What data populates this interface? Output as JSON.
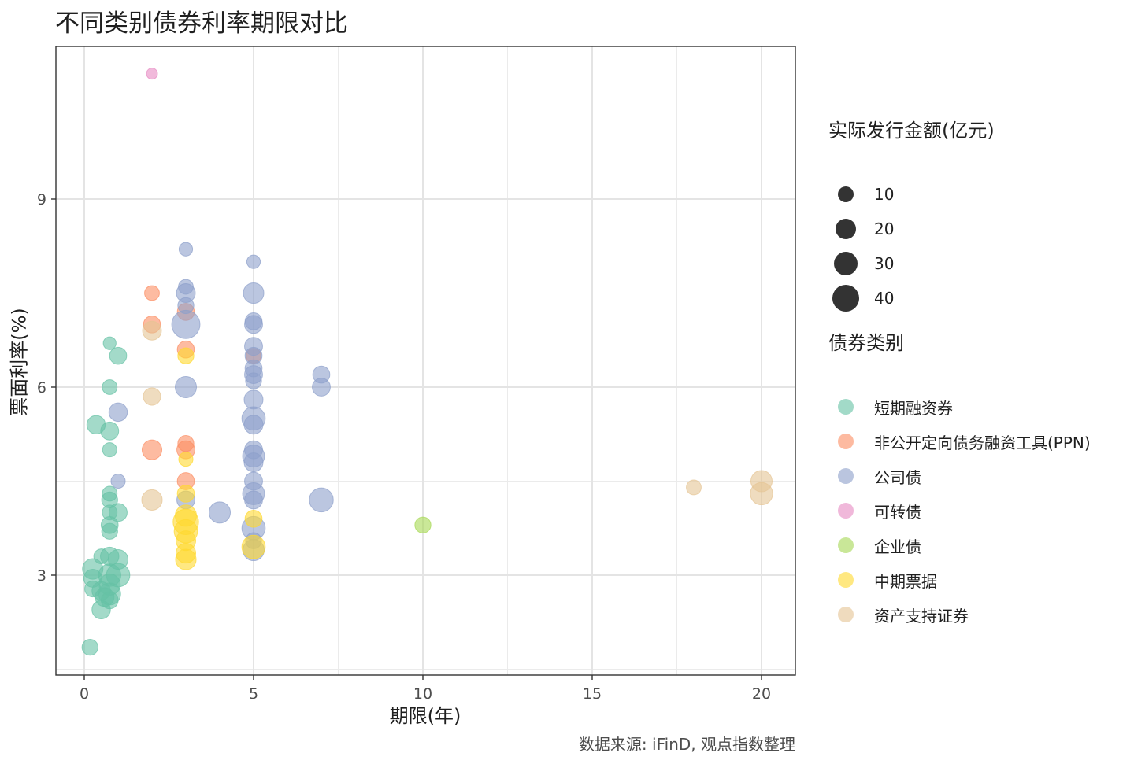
{
  "title": "不同类别债券利率期限对比",
  "caption": "数据来源: iFinD, 观点指数整理",
  "colors": {
    "短期融资券": "#66c2a5",
    "非公开定向债务融资工具(PPN)": "#fc8d62",
    "公司债": "#8da0cb",
    "可转债": "#e78ac3",
    "企业债": "#a6d854",
    "中期票据": "#ffd92f",
    "资产支持证券": "#e5c494"
  },
  "legend_size": {
    "title": "实际发行金额(亿元)",
    "items": [
      {
        "label": "10",
        "value": 10
      },
      {
        "label": "20",
        "value": 20
      },
      {
        "label": "30",
        "value": 30
      },
      {
        "label": "40",
        "value": 40
      }
    ]
  },
  "legend_color": {
    "title": "债券类别",
    "items": [
      {
        "label": "短期融资券"
      },
      {
        "label": "非公开定向债务融资工具(PPN)"
      },
      {
        "label": "公司债"
      },
      {
        "label": "可转债"
      },
      {
        "label": "企业债"
      },
      {
        "label": "中期票据"
      },
      {
        "label": "资产支持证券"
      }
    ]
  },
  "chart_data": {
    "type": "scatter",
    "title": "不同类别债券利率期限对比",
    "xlabel": "期限(年)",
    "ylabel": "票面利率(%)",
    "xlim": [
      -0.8,
      21
    ],
    "ylim": [
      1.41,
      11.43
    ],
    "xticks": [
      0,
      5,
      10,
      15,
      20
    ],
    "yticks": [
      3,
      6,
      9
    ],
    "grid": true,
    "legend_position": "right",
    "size_legend": {
      "title": "实际发行金额(亿元)",
      "breaks": [
        10,
        20,
        30,
        40
      ]
    },
    "color_legend": {
      "title": "债券类别",
      "categories": [
        "短期融资券",
        "非公开定向债务融资工具(PPN)",
        "公司债",
        "可转债",
        "企业债",
        "中期票据",
        "资产支持证券"
      ]
    },
    "series": [
      {
        "name": "短期融资券",
        "points": [
          {
            "x": 0.75,
            "y": 6.7,
            "size": 5
          },
          {
            "x": 1.0,
            "y": 6.5,
            "size": 12
          },
          {
            "x": 0.75,
            "y": 6.0,
            "size": 8
          },
          {
            "x": 0.35,
            "y": 5.4,
            "size": 15
          },
          {
            "x": 0.75,
            "y": 5.3,
            "size": 14
          },
          {
            "x": 0.75,
            "y": 5.0,
            "size": 7
          },
          {
            "x": 0.75,
            "y": 4.3,
            "size": 8
          },
          {
            "x": 0.75,
            "y": 4.2,
            "size": 10
          },
          {
            "x": 1.0,
            "y": 4.0,
            "size": 14
          },
          {
            "x": 0.75,
            "y": 4.0,
            "size": 8
          },
          {
            "x": 0.75,
            "y": 3.8,
            "size": 12
          },
          {
            "x": 0.75,
            "y": 3.7,
            "size": 10
          },
          {
            "x": 0.5,
            "y": 3.3,
            "size": 8
          },
          {
            "x": 0.75,
            "y": 3.3,
            "size": 15
          },
          {
            "x": 1.0,
            "y": 3.25,
            "size": 18
          },
          {
            "x": 0.25,
            "y": 3.1,
            "size": 20
          },
          {
            "x": 0.25,
            "y": 2.95,
            "size": 14
          },
          {
            "x": 0.75,
            "y": 3.0,
            "size": 25
          },
          {
            "x": 1.0,
            "y": 3.0,
            "size": 28
          },
          {
            "x": 0.75,
            "y": 2.85,
            "size": 22
          },
          {
            "x": 0.5,
            "y": 2.75,
            "size": 15
          },
          {
            "x": 0.25,
            "y": 2.78,
            "size": 10
          },
          {
            "x": 0.75,
            "y": 2.7,
            "size": 24
          },
          {
            "x": 0.6,
            "y": 2.65,
            "size": 16
          },
          {
            "x": 0.75,
            "y": 2.6,
            "size": 12
          },
          {
            "x": 0.5,
            "y": 2.45,
            "size": 15
          },
          {
            "x": 0.17,
            "y": 1.85,
            "size": 10
          }
        ]
      },
      {
        "name": "非公开定向债务融资工具(PPN)",
        "points": [
          {
            "x": 2.0,
            "y": 7.5,
            "size": 8
          },
          {
            "x": 2.0,
            "y": 7.0,
            "size": 12
          },
          {
            "x": 3.0,
            "y": 7.2,
            "size": 12
          },
          {
            "x": 3.0,
            "y": 6.6,
            "size": 12
          },
          {
            "x": 3.0,
            "y": 5.1,
            "size": 10
          },
          {
            "x": 3.0,
            "y": 5.0,
            "size": 14
          },
          {
            "x": 2.0,
            "y": 5.0,
            "size": 18
          },
          {
            "x": 3.0,
            "y": 4.5,
            "size": 12
          },
          {
            "x": 5.0,
            "y": 6.5,
            "size": 8
          }
        ]
      },
      {
        "name": "公司债",
        "points": [
          {
            "x": 3.0,
            "y": 8.2,
            "size": 6
          },
          {
            "x": 3.0,
            "y": 7.6,
            "size": 8
          },
          {
            "x": 3.0,
            "y": 7.5,
            "size": 16
          },
          {
            "x": 3.0,
            "y": 7.3,
            "size": 10
          },
          {
            "x": 3.0,
            "y": 7.0,
            "size": 45
          },
          {
            "x": 3.0,
            "y": 6.0,
            "size": 22
          },
          {
            "x": 3.0,
            "y": 4.2,
            "size": 14
          },
          {
            "x": 1.0,
            "y": 5.6,
            "size": 15
          },
          {
            "x": 1.0,
            "y": 4.5,
            "size": 7
          },
          {
            "x": 4.0,
            "y": 4.0,
            "size": 22
          },
          {
            "x": 5.0,
            "y": 8.0,
            "size": 6
          },
          {
            "x": 5.0,
            "y": 7.5,
            "size": 20
          },
          {
            "x": 5.0,
            "y": 7.05,
            "size": 12
          },
          {
            "x": 5.0,
            "y": 7.0,
            "size": 14
          },
          {
            "x": 5.0,
            "y": 6.65,
            "size": 14
          },
          {
            "x": 5.0,
            "y": 6.5,
            "size": 12
          },
          {
            "x": 5.0,
            "y": 6.3,
            "size": 12
          },
          {
            "x": 5.0,
            "y": 6.2,
            "size": 14
          },
          {
            "x": 5.0,
            "y": 6.1,
            "size": 10
          },
          {
            "x": 5.0,
            "y": 5.8,
            "size": 16
          },
          {
            "x": 5.0,
            "y": 5.5,
            "size": 28
          },
          {
            "x": 5.0,
            "y": 5.4,
            "size": 16
          },
          {
            "x": 5.0,
            "y": 5.0,
            "size": 14
          },
          {
            "x": 5.0,
            "y": 4.9,
            "size": 24
          },
          {
            "x": 5.0,
            "y": 4.8,
            "size": 16
          },
          {
            "x": 5.0,
            "y": 4.5,
            "size": 14
          },
          {
            "x": 5.0,
            "y": 4.3,
            "size": 24
          },
          {
            "x": 5.0,
            "y": 4.2,
            "size": 14
          },
          {
            "x": 5.0,
            "y": 3.75,
            "size": 28
          },
          {
            "x": 5.0,
            "y": 3.55,
            "size": 10
          },
          {
            "x": 5.0,
            "y": 3.4,
            "size": 22
          },
          {
            "x": 7.0,
            "y": 6.2,
            "size": 12
          },
          {
            "x": 7.0,
            "y": 6.0,
            "size": 14
          },
          {
            "x": 7.0,
            "y": 4.2,
            "size": 30
          }
        ]
      },
      {
        "name": "可转债",
        "points": [
          {
            "x": 2.0,
            "y": 11.0,
            "size": 3
          }
        ]
      },
      {
        "name": "企业债",
        "points": [
          {
            "x": 10.0,
            "y": 3.8,
            "size": 10
          }
        ]
      },
      {
        "name": "中期票据",
        "points": [
          {
            "x": 3.0,
            "y": 6.5,
            "size": 10
          },
          {
            "x": 3.0,
            "y": 4.85,
            "size": 7
          },
          {
            "x": 3.0,
            "y": 4.3,
            "size": 12
          },
          {
            "x": 3.0,
            "y": 3.95,
            "size": 22
          },
          {
            "x": 3.0,
            "y": 3.85,
            "size": 35
          },
          {
            "x": 3.0,
            "y": 3.7,
            "size": 28
          },
          {
            "x": 3.0,
            "y": 3.55,
            "size": 18
          },
          {
            "x": 3.0,
            "y": 3.35,
            "size": 18
          },
          {
            "x": 3.0,
            "y": 3.25,
            "size": 20
          },
          {
            "x": 5.0,
            "y": 3.9,
            "size": 12
          },
          {
            "x": 5.0,
            "y": 3.45,
            "size": 28
          }
        ]
      },
      {
        "name": "资产支持证券",
        "points": [
          {
            "x": 2.0,
            "y": 6.9,
            "size": 16
          },
          {
            "x": 2.0,
            "y": 5.85,
            "size": 13
          },
          {
            "x": 2.0,
            "y": 4.2,
            "size": 20
          },
          {
            "x": 18.0,
            "y": 4.4,
            "size": 8
          },
          {
            "x": 20.0,
            "y": 4.5,
            "size": 22
          },
          {
            "x": 20.0,
            "y": 4.3,
            "size": 25
          }
        ]
      }
    ]
  }
}
